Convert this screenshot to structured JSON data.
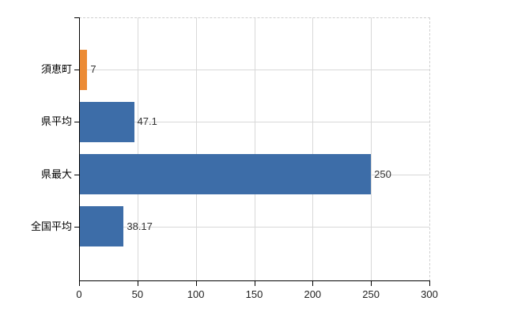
{
  "chart_data": {
    "type": "bar",
    "orientation": "horizontal",
    "title": "",
    "categories": [
      "須恵町",
      "県平均",
      "県最大",
      "全国平均"
    ],
    "values": [
      7,
      47.1,
      250,
      38.17
    ],
    "value_labels": [
      "7",
      "47.1",
      "250",
      "38.17"
    ],
    "bar_colors": [
      "#ec8b35",
      "#3d6da8",
      "#3d6da8",
      "#3d6da8"
    ],
    "xlim": [
      0,
      300
    ],
    "x_ticks": [
      0,
      50,
      100,
      150,
      200,
      250,
      300
    ],
    "x_tick_labels": [
      "0",
      "50",
      "100",
      "150",
      "200",
      "250",
      "300"
    ],
    "grid": true,
    "legend": false,
    "highlighted_category": "須恵町"
  },
  "colors": {
    "background": "#ffffff",
    "bar_highlight": "#ec8b35",
    "bar_default": "#3d6da8",
    "gridline": "#d8d8d8",
    "plot_border_dashed": "#cfcfcf",
    "axis": "#000000",
    "category_text": "#000000",
    "value_text": "#333333",
    "tick_text": "#222222"
  }
}
